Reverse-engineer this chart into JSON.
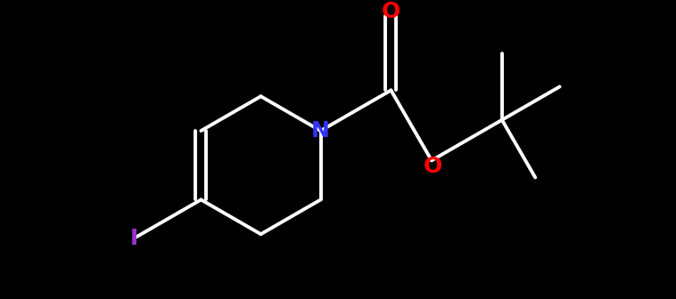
{
  "bg_color": "#000000",
  "bond_color": "#ffffff",
  "N_color": "#3333ff",
  "O_color": "#ff0000",
  "I_color": "#9933cc",
  "line_width": 2.8,
  "font_size": 18,
  "figsize": [
    7.58,
    3.36
  ],
  "dpi": 100,
  "xlim": [
    -3.5,
    4.0
  ],
  "ylim": [
    -1.8,
    1.8
  ]
}
